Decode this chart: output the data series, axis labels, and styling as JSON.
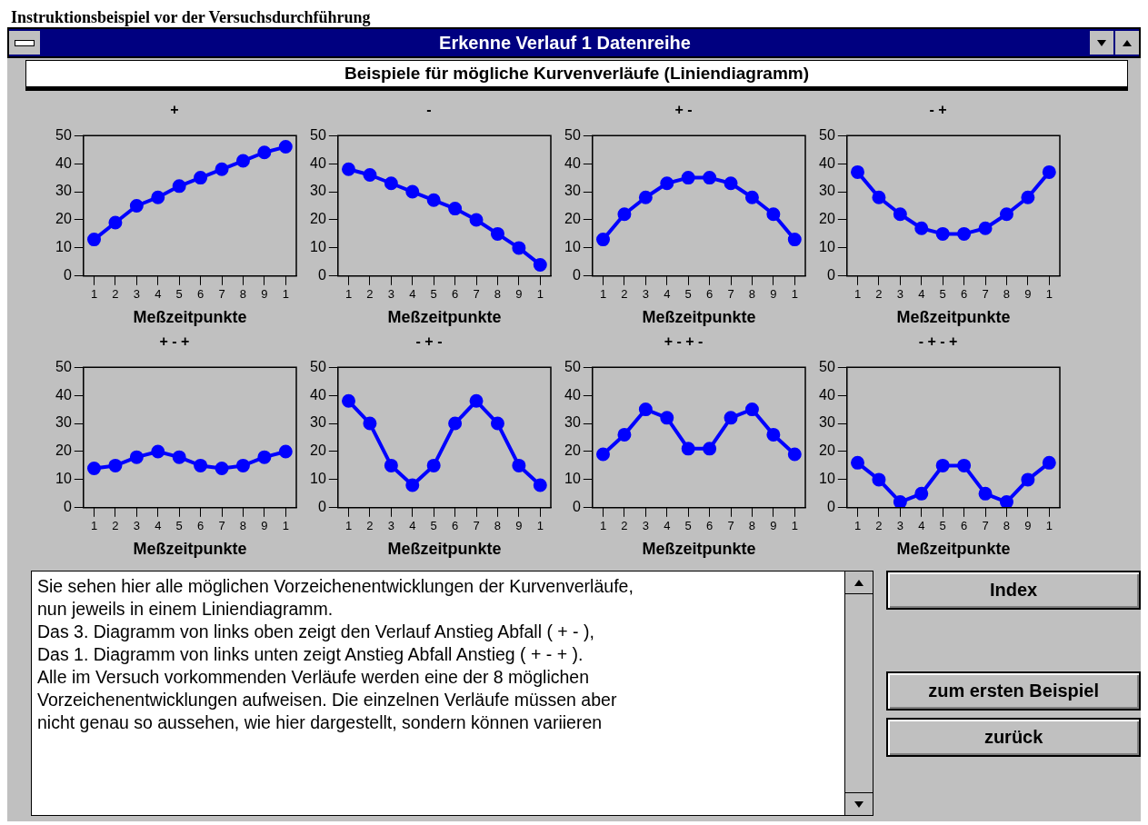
{
  "chart_data": [
    {
      "type": "other",
      "title": "Erkenne Verlauf 1 Datenreihe",
      "subtitle": "Beispiele für mögliche Kurvenverläufe (Liniendiagramm)",
      "annotations": [
        "Instruktionsbeispiel vor der Versuchsdurchführung"
      ]
    },
    {
      "type": "line",
      "title": "+",
      "xlabel": "Meßzeitpunkte",
      "categories": [
        "1",
        "2",
        "3",
        "4",
        "5",
        "6",
        "7",
        "8",
        "9",
        "1"
      ],
      "values": [
        13,
        19,
        25,
        28,
        32,
        35,
        38,
        41,
        44,
        46
      ],
      "color": "#0000ff",
      "ylim": [
        0,
        50
      ],
      "yticks": [
        0,
        10,
        20,
        30,
        40,
        50
      ],
      "marker": "circle"
    },
    {
      "type": "line",
      "title": "-",
      "xlabel": "Meßzeitpunkte",
      "categories": [
        "1",
        "2",
        "3",
        "4",
        "5",
        "6",
        "7",
        "8",
        "9",
        "1"
      ],
      "values": [
        38,
        36,
        33,
        30,
        27,
        24,
        20,
        15,
        10,
        4
      ],
      "color": "#0000ff",
      "ylim": [
        0,
        50
      ],
      "yticks": [
        0,
        10,
        20,
        30,
        40,
        50
      ],
      "marker": "circle"
    },
    {
      "type": "line",
      "title": "+ -",
      "xlabel": "Meßzeitpunkte",
      "categories": [
        "1",
        "2",
        "3",
        "4",
        "5",
        "6",
        "7",
        "8",
        "9",
        "1"
      ],
      "values": [
        13,
        22,
        28,
        33,
        35,
        35,
        33,
        28,
        22,
        13
      ],
      "color": "#0000ff",
      "ylim": [
        0,
        50
      ],
      "yticks": [
        0,
        10,
        20,
        30,
        40,
        50
      ],
      "marker": "circle"
    },
    {
      "type": "line",
      "title": "- +",
      "xlabel": "Meßzeitpunkte",
      "categories": [
        "1",
        "2",
        "3",
        "4",
        "5",
        "6",
        "7",
        "8",
        "9",
        "1"
      ],
      "values": [
        37,
        28,
        22,
        17,
        15,
        15,
        17,
        22,
        28,
        37
      ],
      "color": "#0000ff",
      "ylim": [
        0,
        50
      ],
      "yticks": [
        0,
        10,
        20,
        30,
        40,
        50
      ],
      "marker": "circle"
    },
    {
      "type": "line",
      "title": "+ - +",
      "xlabel": "Meßzeitpunkte",
      "categories": [
        "1",
        "2",
        "3",
        "4",
        "5",
        "6",
        "7",
        "8",
        "9",
        "1"
      ],
      "values": [
        14,
        15,
        18,
        20,
        18,
        15,
        14,
        15,
        18,
        20
      ],
      "color": "#0000ff",
      "ylim": [
        0,
        50
      ],
      "yticks": [
        0,
        10,
        20,
        30,
        40,
        50
      ],
      "marker": "circle"
    },
    {
      "type": "line",
      "title": "- + -",
      "xlabel": "Meßzeitpunkte",
      "categories": [
        "1",
        "2",
        "3",
        "4",
        "5",
        "6",
        "7",
        "8",
        "9",
        "1"
      ],
      "values": [
        38,
        30,
        15,
        8,
        15,
        30,
        38,
        30,
        15,
        8
      ],
      "color": "#0000ff",
      "ylim": [
        0,
        50
      ],
      "yticks": [
        0,
        10,
        20,
        30,
        40,
        50
      ],
      "marker": "circle"
    },
    {
      "type": "line",
      "title": "+ - + -",
      "xlabel": "Meßzeitpunkte",
      "categories": [
        "1",
        "2",
        "3",
        "4",
        "5",
        "6",
        "7",
        "8",
        "9",
        "1"
      ],
      "values": [
        19,
        26,
        35,
        32,
        21,
        21,
        32,
        35,
        26,
        19
      ],
      "color": "#0000ff",
      "ylim": [
        0,
        50
      ],
      "yticks": [
        0,
        10,
        20,
        30,
        40,
        50
      ],
      "marker": "circle"
    },
    {
      "type": "line",
      "title": "- + - +",
      "xlabel": "Meßzeitpunkte",
      "categories": [
        "1",
        "2",
        "3",
        "4",
        "5",
        "6",
        "7",
        "8",
        "9",
        "1"
      ],
      "values": [
        16,
        10,
        2,
        5,
        15,
        15,
        5,
        2,
        10,
        16
      ],
      "color": "#0000ff",
      "ylim": [
        0,
        50
      ],
      "yticks": [
        0,
        10,
        20,
        30,
        40,
        50
      ],
      "marker": "circle"
    },
    {
      "type": "other",
      "annotations": [
        "Sie sehen hier alle möglichen Vorzeichenentwicklungen der Kurvenverläufe,",
        "nun jeweils in einem Liniendiagramm.",
        "Das 3. Diagramm von links oben zeigt den Verlauf Anstieg Abfall ( + - ),",
        "Das 1. Diagramm von links unten zeigt  Anstieg Abfall Anstieg  ( + - + ).",
        "Alle im Versuch vorkommenden Verläufe werden eine der 8 möglichen",
        "Vorzeichenentwicklungen aufweisen. Die einzelnen Verläufe müssen aber",
        "nicht genau so aussehen, wie hier dargestellt, sondern können variieren"
      ]
    },
    {
      "type": "other",
      "annotations": [
        "Index",
        "zum ersten Beispiel",
        "zurück"
      ]
    }
  ]
}
